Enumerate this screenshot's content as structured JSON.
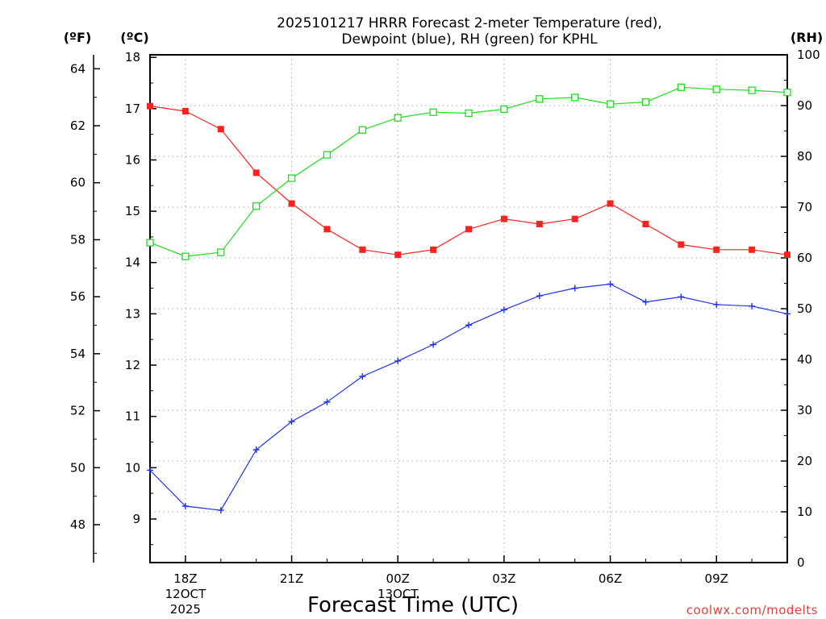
{
  "chart_data": {
    "type": "line",
    "title_line1": "2025101217 HRRR Forecast 2-meter Temperature (red),",
    "title_line2": "Dewpoint (blue), RH (green) for KPHL",
    "xlabel": "Forecast Time (UTC)",
    "credit": "coolwx.com/modelts",
    "unit_f": "(ºF)",
    "unit_c": "(ºC)",
    "unit_rh": "(RH)",
    "y_celsius_range": [
      8.15,
      18.05
    ],
    "y_rh_range": [
      0,
      100
    ],
    "celsius_ticks": [
      9,
      10,
      11,
      12,
      13,
      14,
      15,
      16,
      17,
      18
    ],
    "fahrenheit_ticks": [
      48,
      50,
      52,
      54,
      56,
      58,
      60,
      62,
      64
    ],
    "rh_ticks": [
      0,
      10,
      20,
      30,
      40,
      50,
      60,
      70,
      80,
      90,
      100
    ],
    "x_hours": [
      "17Z",
      "18Z",
      "19Z",
      "20Z",
      "21Z",
      "22Z",
      "23Z",
      "00Z",
      "01Z",
      "02Z",
      "03Z",
      "04Z",
      "05Z",
      "06Z",
      "07Z",
      "08Z",
      "09Z",
      "10Z",
      "11Z"
    ],
    "x_tick_labels": [
      {
        "index": 1,
        "lines": [
          "18Z",
          "12OCT",
          "2025"
        ]
      },
      {
        "index": 4,
        "lines": [
          "21Z"
        ]
      },
      {
        "index": 7,
        "lines": [
          "00Z",
          "13OCT"
        ]
      },
      {
        "index": 10,
        "lines": [
          "03Z"
        ]
      },
      {
        "index": 13,
        "lines": [
          "06Z"
        ]
      },
      {
        "index": 16,
        "lines": [
          "09Z"
        ]
      }
    ],
    "series": [
      {
        "name": "Temperature",
        "unit": "C",
        "color": "#ff2020",
        "marker": "square-filled",
        "values": [
          17.05,
          16.95,
          16.6,
          15.75,
          15.15,
          14.65,
          14.25,
          14.15,
          14.25,
          14.65,
          14.85,
          14.75,
          14.85,
          15.15,
          14.75,
          14.35,
          14.25,
          14.25,
          14.15
        ]
      },
      {
        "name": "Dewpoint",
        "unit": "C",
        "color": "#2030ee",
        "marker": "plus",
        "values": [
          9.95,
          9.25,
          9.17,
          10.35,
          10.9,
          11.28,
          11.78,
          12.08,
          12.4,
          12.78,
          13.08,
          13.35,
          13.5,
          13.58,
          13.23,
          13.33,
          13.18,
          13.15,
          13.0
        ]
      },
      {
        "name": "RH",
        "unit": "%",
        "color": "#20dd20",
        "marker": "square-open",
        "values": [
          63,
          60.3,
          61.1,
          70.2,
          75.7,
          80.3,
          85.2,
          87.6,
          88.7,
          88.5,
          89.3,
          91.3,
          91.6,
          90.3,
          90.7,
          93.6,
          93.2,
          93.0,
          92.6
        ]
      }
    ]
  }
}
